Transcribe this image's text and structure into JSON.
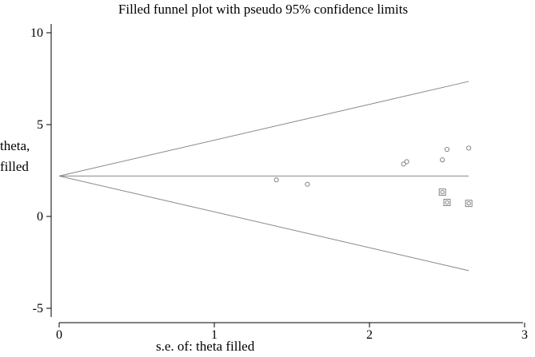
{
  "chart_data": {
    "type": "scatter",
    "title": "Filled funnel plot with pseudo 95% confidence limits",
    "xlabel": "s.e. of: theta filled",
    "ylabel_lines": [
      "theta,",
      "filled"
    ],
    "xlim": [
      0,
      3
    ],
    "ylim": [
      -5,
      10
    ],
    "xticks": [
      0,
      1,
      2,
      3
    ],
    "yticks": [
      10,
      5,
      0,
      -5
    ],
    "pooled_estimate": 2.2,
    "funnel": {
      "se_max": 2.64,
      "upper_end": 7.35,
      "lower_end": -2.95
    },
    "series": [
      {
        "marker": "circle",
        "points": [
          [
            1.4,
            1.99
          ],
          [
            1.6,
            1.75
          ],
          [
            2.22,
            2.85
          ],
          [
            2.24,
            2.98
          ],
          [
            2.47,
            3.08
          ],
          [
            2.5,
            3.65
          ],
          [
            2.64,
            3.72
          ]
        ]
      },
      {
        "marker": "square-filled",
        "points": [
          [
            2.47,
            1.32
          ],
          [
            2.5,
            0.76
          ],
          [
            2.64,
            0.71
          ]
        ]
      }
    ],
    "colors": {
      "axis": "#000000",
      "funnel": "#888888",
      "marker": "#777777"
    }
  }
}
